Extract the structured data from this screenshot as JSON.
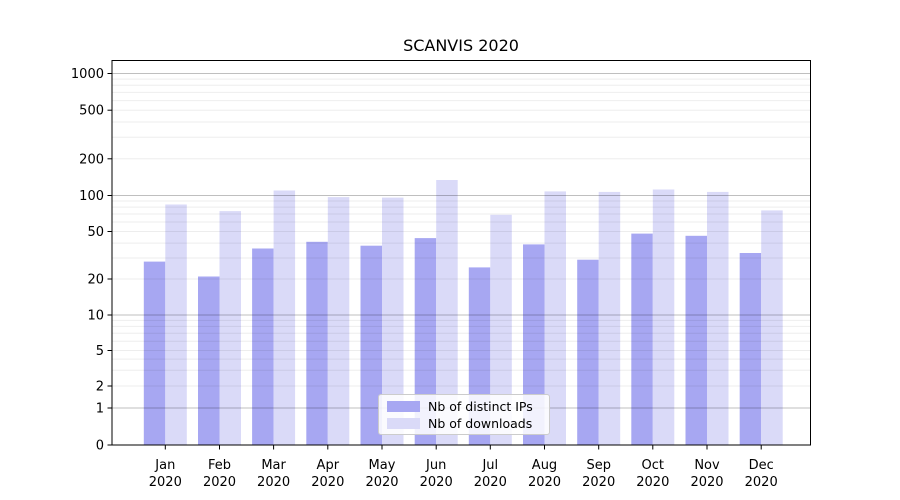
{
  "chart_data": {
    "type": "bar",
    "title": "SCANVIS 2020",
    "x_months": [
      "Jan",
      "Feb",
      "Mar",
      "Apr",
      "May",
      "Jun",
      "Jul",
      "Aug",
      "Sep",
      "Oct",
      "Nov",
      "Dec"
    ],
    "x_year": "2020",
    "series": [
      {
        "name": "Nb of distinct IPs",
        "color": "#a7a7f2",
        "values": [
          28,
          21,
          36,
          41,
          38,
          44,
          25,
          39,
          29,
          48,
          46,
          33
        ]
      },
      {
        "name": "Nb of downloads",
        "color": "#dadaf8",
        "values": [
          84,
          74,
          110,
          97,
          96,
          134,
          69,
          108,
          107,
          112,
          107,
          75
        ]
      }
    ],
    "y_scale": "symlog",
    "y_ticks": [
      0,
      1,
      2,
      5,
      10,
      20,
      50,
      100,
      200,
      500,
      1000
    ],
    "ylim": [
      0,
      1290
    ],
    "xlabel": "",
    "ylabel": "",
    "grid": true,
    "legend_position": "lower center"
  }
}
